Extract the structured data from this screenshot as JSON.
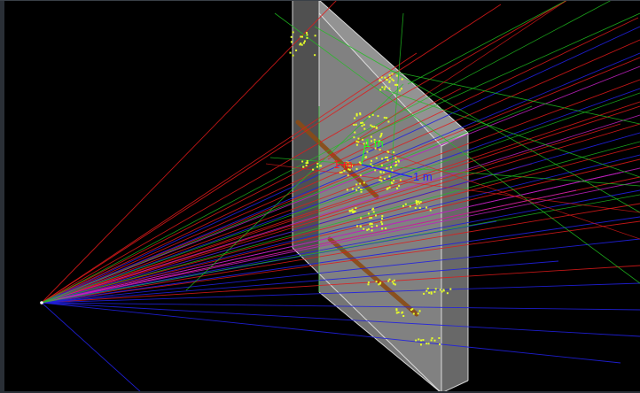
{
  "window": {
    "title": ""
  },
  "scene": {
    "background": "#000000",
    "detector_plane_color": "#8a8a8a",
    "detector_edge_color": "#e6e6e6",
    "track_colors": {
      "red": "#e01a1a",
      "blue": "#2020e0",
      "green": "#20c020",
      "magenta": "#c020c0"
    },
    "hit_color": "#e6ff2a",
    "axis_labels": {
      "x": "1 m",
      "y": "1 m",
      "z": "1 m"
    },
    "axis_colors": {
      "x": "#ff2020",
      "y": "#20ff20",
      "z": "#2020ff"
    }
  }
}
